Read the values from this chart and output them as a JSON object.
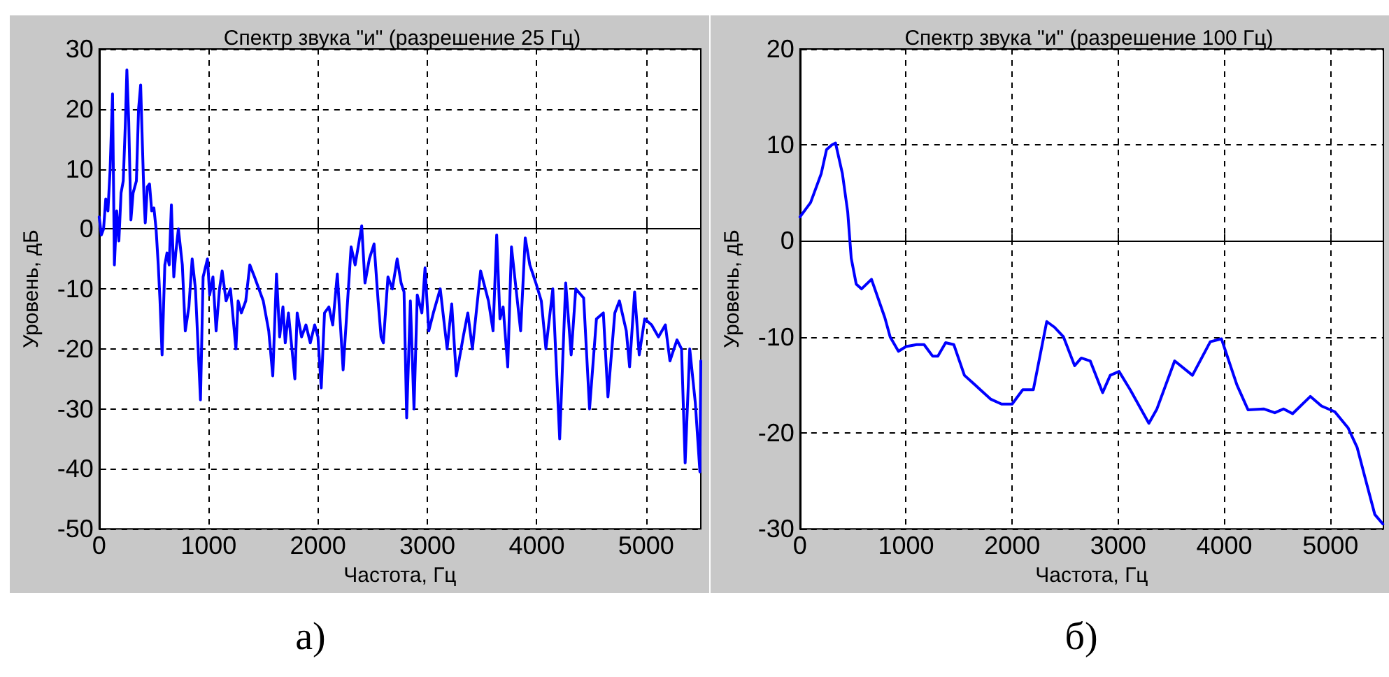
{
  "chart_data": [
    {
      "type": "line",
      "title": "Спектр звука \"и\" (разрешение 25 Гц)",
      "xlabel": "Частота, Гц",
      "ylabel": "Уровень, дБ",
      "annotations": [
        "а)"
      ],
      "xlim": [
        0,
        5500
      ],
      "xticks": [
        0,
        1000,
        2000,
        3000,
        4000,
        5000
      ],
      "ylim": [
        -50,
        30
      ],
      "yticks": [
        -50,
        -40,
        -30,
        -20,
        -10,
        0,
        10,
        20,
        30
      ],
      "grid": true,
      "marker": "none",
      "line_style": "solid",
      "series": [
        {
          "color": "#0000ff",
          "x": [
            0,
            20,
            40,
            60,
            80,
            100,
            122,
            139,
            160,
            180,
            200,
            220,
            240,
            253,
            270,
            290,
            310,
            340,
            360,
            379,
            395,
            410,
            421,
            440,
            460,
            480,
            500,
            520,
            540,
            556,
            575,
            600,
            620,
            640,
            660,
            682,
            700,
            724,
            760,
            787,
            820,
            850,
            880,
            926,
            950,
            990,
            1010,
            1040,
            1069,
            1100,
            1124,
            1160,
            1200,
            1250,
            1270,
            1300,
            1340,
            1377,
            1420,
            1460,
            1500,
            1550,
            1587,
            1621,
            1650,
            1680,
            1701,
            1730,
            1789,
            1810,
            1850,
            1890,
            1930,
            1970,
            2000,
            2030,
            2060,
            2100,
            2135,
            2177,
            2230,
            2303,
            2340,
            2400,
            2430,
            2470,
            2513,
            2550,
            2577,
            2598,
            2640,
            2680,
            2724,
            2760,
            2787,
            2811,
            2845,
            2878,
            2908,
            2950,
            2979,
            3013,
            3055,
            3118,
            3181,
            3223,
            3265,
            3328,
            3370,
            3412,
            3487,
            3559,
            3601,
            3634,
            3664,
            3693,
            3735,
            3769,
            3811,
            3853,
            3895,
            3937,
            3992,
            4042,
            4084,
            4147,
            4210,
            4265,
            4315,
            4357,
            4429,
            4483,
            4546,
            4609,
            4651,
            4714,
            4756,
            4819,
            4849,
            4895,
            4937,
            4987,
            5050,
            5113,
            5176,
            5218,
            5282,
            5324,
            5357,
            5399,
            5450,
            5492,
            5500
          ],
          "values": [
            2,
            -1,
            0,
            5,
            3,
            10,
            22.5,
            -6,
            3,
            -2,
            6,
            8,
            18,
            26.5,
            18,
            1.5,
            6,
            8,
            20,
            24,
            14,
            5,
            1,
            7,
            7.5,
            3,
            3.5,
            0,
            -6,
            -12,
            -21,
            -6,
            -4,
            -6,
            4,
            -8,
            -4,
            0,
            -6,
            -17,
            -13,
            -5,
            -10,
            -28.5,
            -8,
            -5,
            -11,
            -8,
            -17,
            -10,
            -7,
            -12,
            -10,
            -20,
            -12,
            -14,
            -12,
            -6,
            -8,
            -10,
            -12,
            -17,
            -24.5,
            -7.5,
            -18,
            -13,
            -19,
            -14,
            -25,
            -14,
            -18,
            -16,
            -19,
            -16,
            -18,
            -26.5,
            -14,
            -13,
            -16,
            -7.5,
            -23.5,
            -3,
            -6,
            0.5,
            -9,
            -5,
            -2.5,
            -12,
            -18,
            -19,
            -8,
            -10,
            -5,
            -9,
            -10.5,
            -31.5,
            -12,
            -30,
            -11,
            -14,
            -6.5,
            -17,
            -14,
            -10,
            -20,
            -12.5,
            -24.5,
            -18,
            -14,
            -20,
            -7,
            -12,
            -17,
            -1,
            -15,
            -13,
            -23,
            -3,
            -10,
            -17,
            -1.5,
            -6,
            -9,
            -12,
            -20,
            -10,
            -35,
            -9,
            -21,
            -10,
            -11.5,
            -30,
            -15,
            -14,
            -28,
            -14,
            -12,
            -17,
            -23,
            -10.5,
            -21,
            -15,
            -16,
            -18,
            -16,
            -22,
            -18.5,
            -20,
            -39,
            -20,
            -29,
            -40.5,
            -22
          ]
        }
      ]
    },
    {
      "type": "line",
      "title": "Спектр звука \"и\" (разрешение 100 Гц)",
      "xlabel": "Частота, Гц",
      "ylabel": "Уровень, дБ",
      "annotations": [
        "б)"
      ],
      "xlim": [
        0,
        5500
      ],
      "xticks": [
        0,
        1000,
        2000,
        3000,
        4000,
        5000
      ],
      "ylim": [
        -30,
        20
      ],
      "yticks": [
        -30,
        -20,
        -10,
        0,
        10,
        20
      ],
      "grid": true,
      "marker": "none",
      "line_style": "solid",
      "series": [
        {
          "color": "#0000ff",
          "x": [
            0,
            100,
            200,
            250,
            300,
            335,
            400,
            450,
            483,
            530,
            580,
            674,
            800,
            850,
            928,
            1000,
            1100,
            1170,
            1250,
            1300,
            1373,
            1450,
            1550,
            1650,
            1700,
            1800,
            1900,
            2000,
            2100,
            2200,
            2326,
            2400,
            2484,
            2589,
            2652,
            2736,
            2853,
            2925,
            3008,
            3113,
            3289,
            3365,
            3532,
            3700,
            3868,
            3973,
            4119,
            4224,
            4371,
            4476,
            4560,
            4644,
            4811,
            4916,
            5042,
            5168,
            5252,
            5335,
            5419,
            5495
          ],
          "values": [
            2.5,
            4,
            7,
            9.5,
            10,
            10.2,
            7,
            3,
            -1.8,
            -4.5,
            -5,
            -4,
            -8,
            -10,
            -11.5,
            -11,
            -10.8,
            -10.8,
            -12,
            -12,
            -10.6,
            -10.8,
            -14,
            -15,
            -15.5,
            -16.5,
            -17,
            -17,
            -15.5,
            -15.5,
            -8.4,
            -9,
            -10,
            -13,
            -12.2,
            -12.5,
            -15.8,
            -14,
            -13.6,
            -15.5,
            -19,
            -17.5,
            -12.5,
            -14,
            -10.5,
            -10.2,
            -15,
            -17.6,
            -17.5,
            -17.9,
            -17.5,
            -18,
            -16.2,
            -17.2,
            -17.8,
            -19.5,
            -21.5,
            -25,
            -28.5,
            -29.5
          ]
        }
      ]
    }
  ]
}
